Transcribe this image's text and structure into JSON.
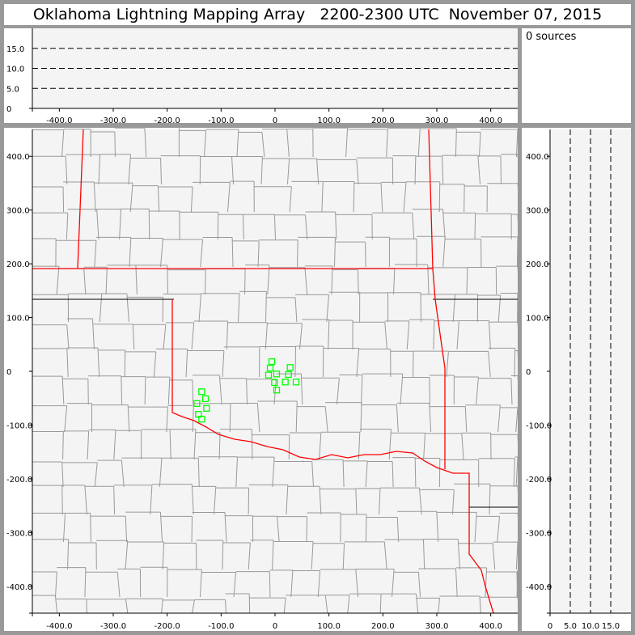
{
  "title": "Oklahoma Lightning Mapping Array   2200-2300 UTC  November 07, 2015",
  "source_count_label": "0 sources",
  "colors": {
    "background": "#999999",
    "plot_bg": "#f4f4f4",
    "county": "#999999",
    "state_border": "#ff0000",
    "source_marker": "#00ff00"
  },
  "chart_data": [
    {
      "type": "line",
      "panel": "east-west vs altitude",
      "x_ticks": [
        "-400.0",
        "-300.0",
        "-200.0",
        "-100.0",
        "0",
        "100.0",
        "200.0",
        "300.0",
        "400.0"
      ],
      "x_tick_values": [
        -400,
        -300,
        -200,
        -100,
        0,
        100,
        200,
        300,
        400
      ],
      "y_ticks": [
        "0",
        "5.0",
        "10.0",
        "15.0"
      ],
      "y_tick_values": [
        0,
        5,
        10,
        15
      ],
      "xlim": [
        -450,
        450
      ],
      "ylim": [
        0,
        20
      ],
      "dashed_grid": [
        5,
        10,
        15
      ]
    },
    {
      "type": "scatter",
      "panel": "plan view",
      "x_ticks": [
        "-400.0",
        "-300.0",
        "-200.0",
        "-100.0",
        "0",
        "100.0",
        "200.0",
        "300.0",
        "400.0"
      ],
      "x_tick_values": [
        -400,
        -300,
        -200,
        -100,
        0,
        100,
        200,
        300,
        400
      ],
      "y_ticks": [
        "400.0",
        "300.0",
        "200.0",
        "100.0",
        "0",
        "-100.0",
        "-200.0",
        "-300.0",
        "-400.0"
      ],
      "y_tick_values": [
        400,
        300,
        200,
        100,
        0,
        -100,
        -200,
        -300,
        -400
      ],
      "xlim": [
        -450,
        450
      ],
      "ylim": [
        -450,
        450
      ],
      "points": [
        {
          "x": -6,
          "y": 18
        },
        {
          "x": -9,
          "y": 6
        },
        {
          "x": -12,
          "y": -7
        },
        {
          "x": 3,
          "y": -5
        },
        {
          "x": -1,
          "y": -21
        },
        {
          "x": 3,
          "y": -35
        },
        {
          "x": 28,
          "y": 7
        },
        {
          "x": 25,
          "y": -6
        },
        {
          "x": 19,
          "y": -20
        },
        {
          "x": 39,
          "y": -20
        },
        {
          "x": -136,
          "y": -38
        },
        {
          "x": -129,
          "y": -51
        },
        {
          "x": -145,
          "y": -60
        },
        {
          "x": -127,
          "y": -69
        },
        {
          "x": -142,
          "y": -80
        },
        {
          "x": -136,
          "y": -89
        }
      ]
    },
    {
      "type": "line",
      "panel": "altitude vs north-south",
      "x_ticks": [
        "0",
        "5.0",
        "10.0",
        "15.0"
      ],
      "x_tick_values": [
        0,
        5,
        10,
        15
      ],
      "y_ticks": [
        "400.0",
        "300.0",
        "200.0",
        "100.0",
        "0",
        "-100.0",
        "-200.0",
        "-300.0",
        "-400.0"
      ],
      "y_tick_values": [
        400,
        300,
        200,
        100,
        0,
        -100,
        -200,
        -300,
        -400
      ],
      "xlim": [
        0,
        20
      ],
      "ylim": [
        -450,
        450
      ],
      "dashed_grid": [
        5,
        10,
        15
      ]
    }
  ]
}
